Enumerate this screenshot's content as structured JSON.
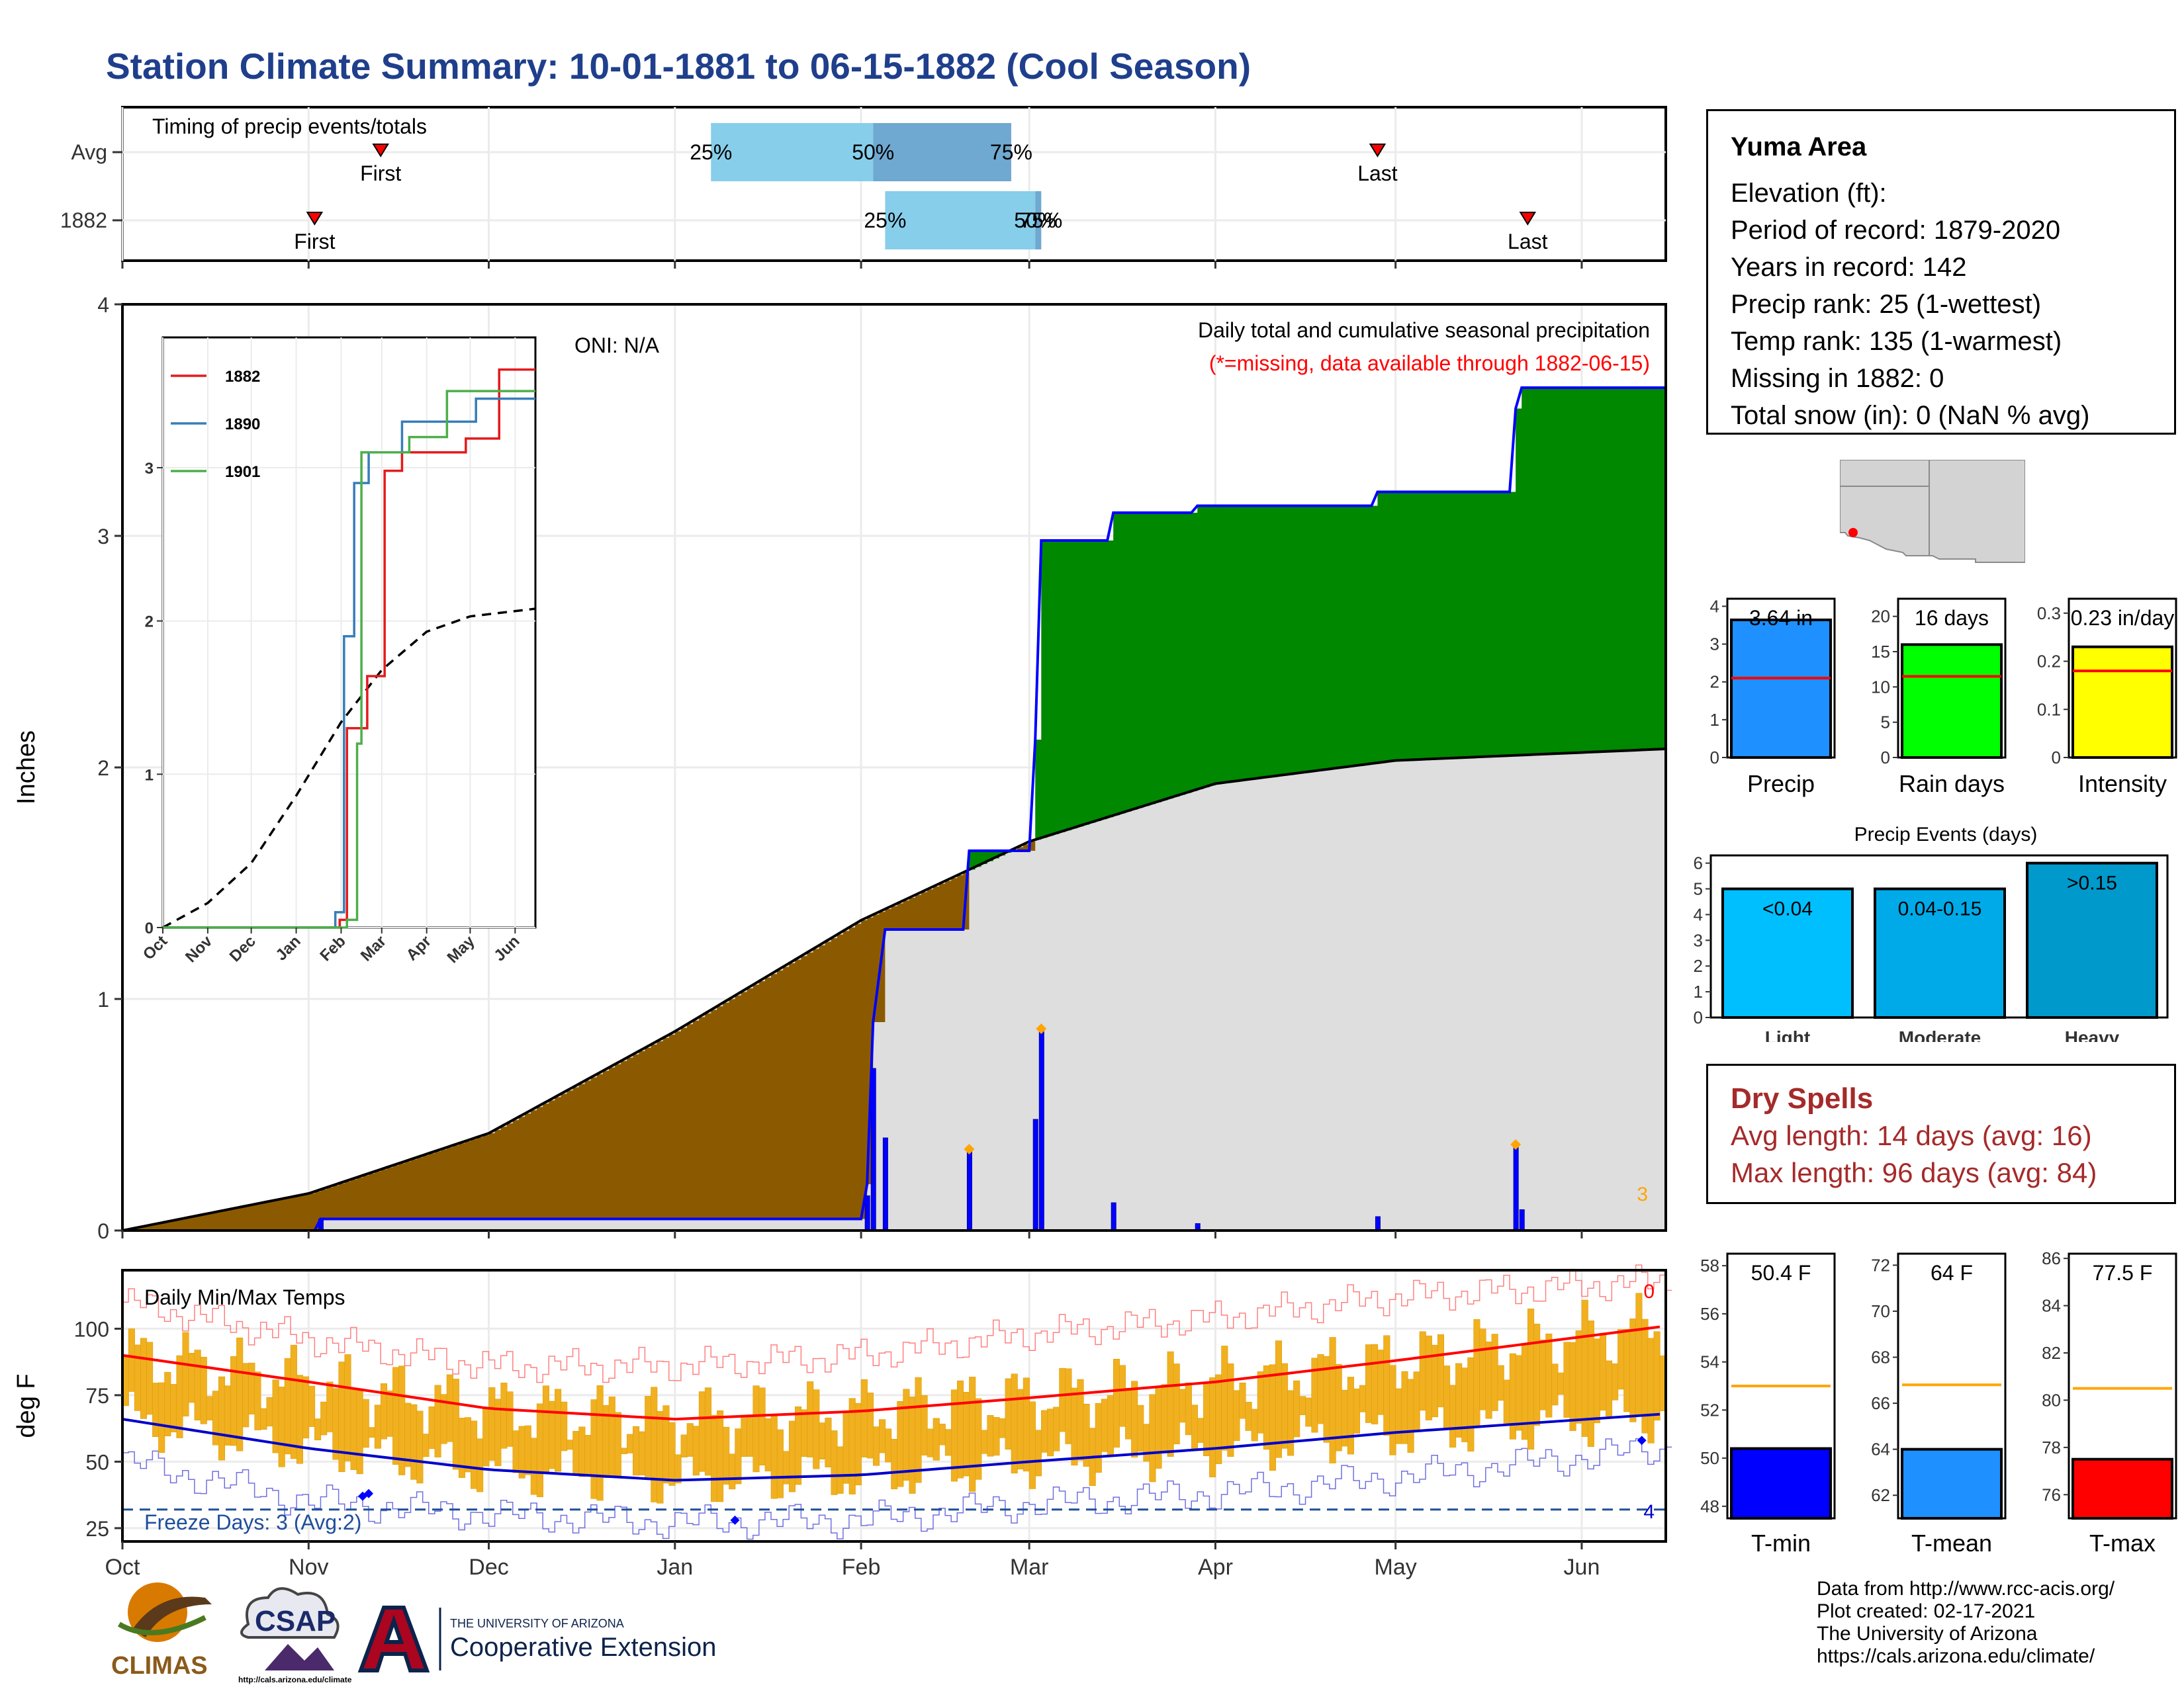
{
  "title": "Station Climate Summary: 10-01-1881 to 06-15-1882 (Cool Season)",
  "colors": {
    "title": "#1f3f8c",
    "deficit_fill": "#8b5a00",
    "surplus_fill": "#008800",
    "normal_fill": "#dedede",
    "precip_line": "#0000ff",
    "tmax_line": "#ff0000",
    "tmin_line": "#0000cc",
    "temp_bar": "#f0b020",
    "accent_orange": "#ffa500",
    "dry_spells": "#a52a2a"
  },
  "station": {
    "name": "Yuma Area",
    "elevation": "Elevation (ft):",
    "period": "Period of record: 1879-2020",
    "years": "Years in record: 142",
    "precip_rank": "Precip rank: 25 (1-wettest)",
    "temp_rank": "Temp rank: 135 (1-warmest)",
    "missing": "Missing in 1882: 0",
    "snow": "Total snow (in): 0 (NaN % avg)"
  },
  "dry_spells": {
    "title": "Dry Spells",
    "avg": "Avg length: 14 days (avg: 16)",
    "max": "Max length: 96 days (avg: 84)"
  },
  "credits": [
    "Data from http://www.rcc-acis.org/",
    "Plot created: 02-17-2021",
    "The University of Arizona",
    "https://cals.arizona.edu/climate/"
  ],
  "logos": {
    "climas": "CLIMAS",
    "csap": "CSAP",
    "csap_url": "http://cals.arizona.edu/climate",
    "ua_line1": "THE UNIVERSITY OF ARIZONA",
    "ua_line2": "Cooperative Extension"
  },
  "chart_data": [
    {
      "id": "timing",
      "type": "bar",
      "title": "Timing of precip events/totals",
      "x_months": [
        "Oct",
        "Nov",
        "Dec",
        "Jan",
        "Feb",
        "Mar",
        "Apr",
        "May",
        "Jun"
      ],
      "rows": [
        {
          "label": "Avg",
          "first": "1881-11-13",
          "q25": "1882-01-07",
          "q50": "1882-02-03",
          "q75": "1882-02-26",
          "last": "1882-04-28",
          "labels": {
            "first": "First",
            "q25": "25%",
            "q50": "50%",
            "q75": "75%",
            "last": "Last"
          }
        },
        {
          "label": "1882",
          "first": "1881-11-02",
          "q25": "1882-02-05",
          "q50": "1882-03-02",
          "q75": "1882-03-03",
          "last": "1882-05-23",
          "labels": {
            "first": "First",
            "q25": "25%",
            "q50": "50%",
            "q75": "75%",
            "last": "Last"
          }
        }
      ]
    },
    {
      "id": "precip",
      "type": "area",
      "ylabel": "Inches",
      "ylim": [
        0,
        4
      ],
      "yticks": [
        0,
        1,
        2,
        3,
        4
      ],
      "x_months": [
        "Oct",
        "Nov",
        "Dec",
        "Jan",
        "Feb",
        "Mar",
        "Apr",
        "May",
        "Jun"
      ],
      "annotation_title": "Daily total and cumulative seasonal precipitation",
      "annotation_missing": "(*=missing, data available through 1882-06-15)",
      "oni": "ONI: N/A",
      "corner_count": "3",
      "normal_cumulative": [
        {
          "x": "1881-10-01",
          "y": 0.0
        },
        {
          "x": "1881-11-01",
          "y": 0.16
        },
        {
          "x": "1881-12-01",
          "y": 0.42
        },
        {
          "x": "1882-01-01",
          "y": 0.86
        },
        {
          "x": "1882-02-01",
          "y": 1.34
        },
        {
          "x": "1882-03-01",
          "y": 1.68
        },
        {
          "x": "1882-04-01",
          "y": 1.93
        },
        {
          "x": "1882-05-01",
          "y": 2.03
        },
        {
          "x": "1882-06-15",
          "y": 2.08
        }
      ],
      "observed_cumulative": [
        {
          "x": "1881-10-01",
          "y": 0.0
        },
        {
          "x": "1881-11-02",
          "y": 0.0
        },
        {
          "x": "1881-11-03",
          "y": 0.05
        },
        {
          "x": "1882-02-01",
          "y": 0.05
        },
        {
          "x": "1882-02-02",
          "y": 0.2
        },
        {
          "x": "1882-02-03",
          "y": 0.9
        },
        {
          "x": "1882-02-05",
          "y": 1.3
        },
        {
          "x": "1882-02-18",
          "y": 1.3
        },
        {
          "x": "1882-02-19",
          "y": 1.64
        },
        {
          "x": "1882-03-01",
          "y": 1.64
        },
        {
          "x": "1882-03-02",
          "y": 2.12
        },
        {
          "x": "1882-03-03",
          "y": 2.98
        },
        {
          "x": "1882-03-14",
          "y": 2.98
        },
        {
          "x": "1882-03-15",
          "y": 3.1
        },
        {
          "x": "1882-03-28",
          "y": 3.1
        },
        {
          "x": "1882-03-29",
          "y": 3.13
        },
        {
          "x": "1882-04-27",
          "y": 3.13
        },
        {
          "x": "1882-04-28",
          "y": 3.19
        },
        {
          "x": "1882-05-20",
          "y": 3.19
        },
        {
          "x": "1882-05-21",
          "y": 3.55
        },
        {
          "x": "1882-05-22",
          "y": 3.64
        },
        {
          "x": "1882-06-15",
          "y": 3.64
        }
      ],
      "daily_precip": [
        {
          "x": "1881-11-03",
          "y": 0.05
        },
        {
          "x": "1882-02-02",
          "y": 0.15
        },
        {
          "x": "1882-02-03",
          "y": 0.7
        },
        {
          "x": "1882-02-05",
          "y": 0.4
        },
        {
          "x": "1882-02-19",
          "y": 0.34
        },
        {
          "x": "1882-03-02",
          "y": 0.48
        },
        {
          "x": "1882-03-03",
          "y": 0.86
        },
        {
          "x": "1882-03-15",
          "y": 0.12
        },
        {
          "x": "1882-03-29",
          "y": 0.03
        },
        {
          "x": "1882-04-28",
          "y": 0.06
        },
        {
          "x": "1882-05-21",
          "y": 0.36
        },
        {
          "x": "1882-05-22",
          "y": 0.09
        }
      ],
      "heavy_marks": [
        "1882-02-19",
        "1882-03-03",
        "1882-05-21"
      ]
    },
    {
      "id": "inset",
      "type": "line",
      "ylim": [
        0,
        3.85
      ],
      "yticks": [
        0,
        1,
        2,
        3
      ],
      "x_months": [
        "Oct",
        "Nov",
        "Dec",
        "Jan",
        "Feb",
        "Mar",
        "Apr",
        "May",
        "Jun"
      ],
      "series": [
        {
          "name": "1882",
          "color": "#e41a1c",
          "points": [
            {
              "x": "1881-10-01",
              "y": 0
            },
            {
              "x": "1882-01-31",
              "y": 0.05
            },
            {
              "x": "1882-02-05",
              "y": 1.3
            },
            {
              "x": "1882-02-19",
              "y": 1.64
            },
            {
              "x": "1882-03-03",
              "y": 2.98
            },
            {
              "x": "1882-03-15",
              "y": 3.1
            },
            {
              "x": "1882-04-28",
              "y": 3.19
            },
            {
              "x": "1882-05-21",
              "y": 3.64
            },
            {
              "x": "1882-06-15",
              "y": 3.64
            }
          ]
        },
        {
          "name": "1890",
          "color": "#377eb8",
          "points": [
            {
              "x": "1881-10-01",
              "y": 0
            },
            {
              "x": "1882-01-28",
              "y": 0.1
            },
            {
              "x": "1882-02-03",
              "y": 1.9
            },
            {
              "x": "1882-02-10",
              "y": 2.9
            },
            {
              "x": "1882-02-20",
              "y": 3.1
            },
            {
              "x": "1882-03-15",
              "y": 3.3
            },
            {
              "x": "1882-05-05",
              "y": 3.45
            },
            {
              "x": "1882-06-15",
              "y": 3.45
            }
          ]
        },
        {
          "name": "1901",
          "color": "#4daf4a",
          "points": [
            {
              "x": "1881-10-01",
              "y": 0
            },
            {
              "x": "1882-02-05",
              "y": 0.05
            },
            {
              "x": "1882-02-12",
              "y": 1.2
            },
            {
              "x": "1882-02-15",
              "y": 3.1
            },
            {
              "x": "1882-03-20",
              "y": 3.2
            },
            {
              "x": "1882-04-15",
              "y": 3.5
            },
            {
              "x": "1882-06-15",
              "y": 3.5
            }
          ]
        }
      ],
      "normal": [
        {
          "x": "1881-10-01",
          "y": 0.0
        },
        {
          "x": "1881-11-01",
          "y": 0.16
        },
        {
          "x": "1881-12-01",
          "y": 0.42
        },
        {
          "x": "1882-01-01",
          "y": 0.86
        },
        {
          "x": "1882-02-01",
          "y": 1.34
        },
        {
          "x": "1882-03-01",
          "y": 1.68
        },
        {
          "x": "1882-04-01",
          "y": 1.93
        },
        {
          "x": "1882-05-01",
          "y": 2.03
        },
        {
          "x": "1882-06-15",
          "y": 2.08
        }
      ]
    },
    {
      "id": "temps",
      "type": "bar",
      "title": "Daily Min/Max Temps",
      "ylabel": "deg F",
      "ylim": [
        20,
        122
      ],
      "yticks": [
        25,
        50,
        75,
        100
      ],
      "x_months": [
        "Oct",
        "Nov",
        "Dec",
        "Jan",
        "Feb",
        "Mar",
        "Apr",
        "May",
        "Jun"
      ],
      "freeze_days": "Freeze Days: 3 (Avg:2)",
      "freeze_line": 32,
      "tmax_normal": [
        {
          "x": "1881-10-01",
          "y": 90
        },
        {
          "x": "1881-11-01",
          "y": 80
        },
        {
          "x": "1881-12-01",
          "y": 70
        },
        {
          "x": "1882-01-01",
          "y": 66
        },
        {
          "x": "1882-02-01",
          "y": 69
        },
        {
          "x": "1882-03-01",
          "y": 74
        },
        {
          "x": "1882-04-01",
          "y": 80
        },
        {
          "x": "1882-05-01",
          "y": 88
        },
        {
          "x": "1882-06-15",
          "y": 101
        }
      ],
      "tmin_normal": [
        {
          "x": "1881-10-01",
          "y": 66
        },
        {
          "x": "1881-11-01",
          "y": 55
        },
        {
          "x": "1881-12-01",
          "y": 47
        },
        {
          "x": "1882-01-01",
          "y": 43
        },
        {
          "x": "1882-02-01",
          "y": 45
        },
        {
          "x": "1882-03-01",
          "y": 50
        },
        {
          "x": "1882-04-01",
          "y": 55
        },
        {
          "x": "1882-05-01",
          "y": 61
        },
        {
          "x": "1882-06-15",
          "y": 68
        }
      ],
      "record_high": [
        {
          "x": "1881-10-01",
          "y": 110
        },
        {
          "x": "1881-11-01",
          "y": 96
        },
        {
          "x": "1881-12-01",
          "y": 86
        },
        {
          "x": "1882-01-01",
          "y": 86
        },
        {
          "x": "1882-02-01",
          "y": 90
        },
        {
          "x": "1882-03-01",
          "y": 98
        },
        {
          "x": "1882-04-01",
          "y": 104
        },
        {
          "x": "1882-05-01",
          "y": 112
        },
        {
          "x": "1882-06-15",
          "y": 118
        }
      ],
      "record_low": [
        {
          "x": "1881-10-01",
          "y": 50
        },
        {
          "x": "1881-11-01",
          "y": 35
        },
        {
          "x": "1881-12-01",
          "y": 30
        },
        {
          "x": "1882-01-01",
          "y": 27
        },
        {
          "x": "1882-02-01",
          "y": 28
        },
        {
          "x": "1882-03-01",
          "y": 34
        },
        {
          "x": "1882-04-01",
          "y": 38
        },
        {
          "x": "1882-05-01",
          "y": 44
        },
        {
          "x": "1882-06-15",
          "y": 55
        }
      ],
      "freeze_marks": [
        {
          "x": "1881-11-10",
          "y": 37
        },
        {
          "x": "1881-11-11",
          "y": 38
        },
        {
          "x": "1882-01-11",
          "y": 28
        },
        {
          "x": "1882-06-11",
          "y": 58
        }
      ],
      "record_high_count": "0",
      "record_low_count": "4"
    },
    {
      "id": "summary_bars",
      "type": "bar",
      "panels": [
        {
          "name": "Precip",
          "value": 3.64,
          "label": "3.64 in",
          "avg": 2.1,
          "ylim": [
            0,
            4.2
          ],
          "yticks": [
            0,
            1,
            2,
            3,
            4
          ],
          "color": "#1e90ff"
        },
        {
          "name": "Rain days",
          "value": 16,
          "label": "16 days",
          "avg": 11.5,
          "ylim": [
            0,
            22.5
          ],
          "yticks": [
            0,
            5,
            10,
            15,
            20
          ],
          "color": "#00ff00"
        },
        {
          "name": "Intensity",
          "value": 0.23,
          "label": "0.23 in/day",
          "avg": 0.18,
          "ylim": [
            0,
            0.33
          ],
          "yticks": [
            0.0,
            0.1,
            0.2,
            0.3
          ],
          "color": "#ffff00"
        }
      ]
    },
    {
      "id": "events",
      "type": "bar",
      "title": "Precip Events (days)",
      "ylim": [
        0,
        6.3
      ],
      "yticks": [
        0,
        1,
        2,
        3,
        4,
        5,
        6
      ],
      "categories": [
        "Light",
        "Moderate",
        "Heavy"
      ],
      "values": [
        5,
        5,
        6
      ],
      "labels": [
        "<0.04",
        "0.04-0.15",
        ">0.15"
      ],
      "colors": [
        "#00bfff",
        "#00aae8",
        "#0099cc"
      ]
    },
    {
      "id": "temp_summary",
      "type": "bar",
      "panels": [
        {
          "name": "T-min",
          "value": 50.4,
          "label": "50.4 F",
          "avg": 53,
          "ylim": [
            47.5,
            58.5
          ],
          "yticks": [
            48,
            50,
            52,
            54,
            56,
            58
          ],
          "color": "#0000ff"
        },
        {
          "name": "T-mean",
          "value": 64,
          "label": "64 F",
          "avg": 66.8,
          "ylim": [
            61,
            72.5
          ],
          "yticks": [
            62,
            64,
            66,
            68,
            70,
            72
          ],
          "color": "#1e90ff"
        },
        {
          "name": "T-max",
          "value": 77.5,
          "label": "77.5 F",
          "avg": 80.5,
          "ylim": [
            75,
            86.2
          ],
          "yticks": [
            76,
            78,
            80,
            82,
            84,
            86
          ],
          "color": "#ff0000"
        }
      ]
    }
  ]
}
